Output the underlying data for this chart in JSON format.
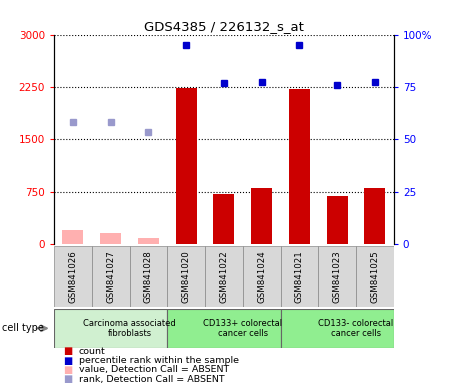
{
  "title": "GDS4385 / 226132_s_at",
  "samples": [
    "GSM841026",
    "GSM841027",
    "GSM841028",
    "GSM841020",
    "GSM841022",
    "GSM841024",
    "GSM841021",
    "GSM841023",
    "GSM841025"
  ],
  "absent": [
    true,
    true,
    true,
    false,
    false,
    false,
    false,
    false,
    false
  ],
  "count_values": [
    200,
    150,
    80,
    2230,
    720,
    800,
    2220,
    680,
    800
  ],
  "rank_values": [
    1750,
    1750,
    1600,
    2850,
    2300,
    2320,
    2850,
    2280,
    2320
  ],
  "ylim_left": [
    0,
    3000
  ],
  "yticks_left": [
    0,
    750,
    1500,
    2250,
    3000
  ],
  "ytick_labels_right": [
    "0",
    "25",
    "50",
    "75",
    "100%"
  ],
  "groups": [
    {
      "label": "Carcinoma associated\nfibroblasts",
      "start": 0,
      "end": 3,
      "color": "#d0f0d0"
    },
    {
      "label": "CD133+ colorectal\ncancer cells",
      "start": 3,
      "end": 6,
      "color": "#90ee90"
    },
    {
      "label": "CD133- colorectal\ncancer cells",
      "start": 6,
      "end": 9,
      "color": "#90ee90"
    }
  ],
  "bar_color_present": "#cc0000",
  "bar_color_absent": "#ffb0b0",
  "dot_color_present": "#0000cc",
  "dot_color_absent": "#9999cc",
  "bar_width": 0.55
}
